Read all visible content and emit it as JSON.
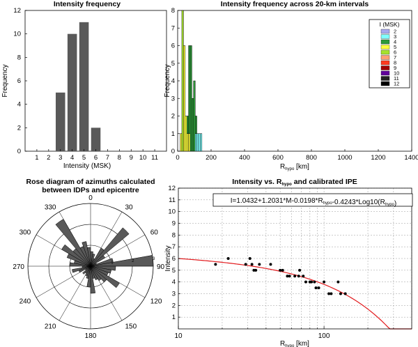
{
  "chart_data": [
    {
      "id": "hist",
      "type": "bar",
      "title": "Intensity frequency",
      "xlabel": "Intensity (MSK)",
      "ylabel": "Frequency",
      "categories": [
        "1",
        "2",
        "3",
        "4",
        "5",
        "6",
        "7",
        "8",
        "9",
        "10",
        "11"
      ],
      "values": [
        0,
        0,
        5,
        10,
        11,
        2,
        0,
        0,
        0,
        0,
        0
      ],
      "xlim": [
        0,
        12
      ],
      "ylim": [
        0,
        12
      ],
      "yticks": [
        0,
        2,
        4,
        6,
        8,
        10,
        12
      ],
      "bar_color": "#595959"
    },
    {
      "id": "stacked",
      "type": "bar",
      "title": "Intensity frequency across 20-km intervals",
      "xlabel": "R",
      "xlabel_sub": "hypo",
      "xlabel_unit": " [km]",
      "ylabel": "Frequency",
      "xlim": [
        0,
        1400
      ],
      "ylim": [
        0,
        8
      ],
      "xticks": [
        0,
        200,
        400,
        600,
        800,
        1000,
        1200,
        1400
      ],
      "yticks": [
        0,
        1,
        2,
        3,
        4,
        5,
        6,
        7,
        8
      ],
      "bin_width": 10,
      "legend_title": "I (MSK)",
      "legend": [
        {
          "label": "2",
          "color": "#a9a9ee"
        },
        {
          "label": "3",
          "color": "#7fffff"
        },
        {
          "label": "4",
          "color": "#2e9a3a"
        },
        {
          "label": "5",
          "color": "#ffff3c"
        },
        {
          "label": "6",
          "color": "#a6e22d"
        },
        {
          "label": "7",
          "color": "#ff9f74"
        },
        {
          "label": "8",
          "color": "#ff3b1f"
        },
        {
          "label": "9",
          "color": "#a10000"
        },
        {
          "label": "10",
          "color": "#60009a"
        },
        {
          "label": "11",
          "color": "#222222"
        },
        {
          "label": "12",
          "color": "#000000"
        }
      ],
      "bins": [
        {
          "x": 20,
          "stack": [
            {
              "i": "5",
              "v": 1
            }
          ]
        },
        {
          "x": 30,
          "stack": [
            {
              "i": "6",
              "v": 8
            }
          ]
        },
        {
          "x": 40,
          "stack": [
            {
              "i": "5",
              "v": 6
            }
          ]
        },
        {
          "x": 50,
          "stack": [
            {
              "i": "5",
              "v": 2
            }
          ]
        },
        {
          "x": 60,
          "stack": [
            {
              "i": "5",
              "v": 1
            },
            {
              "i": "4",
              "v": 1
            }
          ]
        },
        {
          "x": 70,
          "stack": [
            {
              "i": "5",
              "v": 1
            },
            {
              "i": "4",
              "v": 5
            }
          ]
        },
        {
          "x": 80,
          "stack": [
            {
              "i": "4",
              "v": 6
            }
          ]
        },
        {
          "x": 90,
          "stack": [
            {
              "i": "4",
              "v": 3
            }
          ]
        },
        {
          "x": 100,
          "stack": [
            {
              "i": "4",
              "v": 4
            }
          ]
        },
        {
          "x": 110,
          "stack": [
            {
              "i": "3",
              "v": 1
            },
            {
              "i": "4",
              "v": 1
            }
          ]
        },
        {
          "x": 120,
          "stack": [
            {
              "i": "3",
              "v": 1
            }
          ]
        },
        {
          "x": 130,
          "stack": [
            {
              "i": "3",
              "v": 1
            }
          ]
        },
        {
          "x": 140,
          "stack": [
            {
              "i": "3",
              "v": 1
            }
          ]
        }
      ]
    },
    {
      "id": "rose",
      "type": "rose",
      "title_line1": "Rose diagram of azimuths calculated",
      "title_line2": "between  IDPs and epicentre",
      "angle_labels": [
        "0",
        "30",
        "60",
        "90",
        "120",
        "150",
        "180",
        "210",
        "240",
        "270",
        "300",
        "330"
      ],
      "radial_labels": [
        "1",
        "2",
        "3"
      ],
      "rmax": 3,
      "sector_width_deg": 10,
      "sectors": [
        {
          "az": 5,
          "r": 0.7
        },
        {
          "az": 15,
          "r": 0.6
        },
        {
          "az": 25,
          "r": 0.4
        },
        {
          "az": 35,
          "r": 1.0
        },
        {
          "az": 45,
          "r": 2.4
        },
        {
          "az": 55,
          "r": 0.8
        },
        {
          "az": 65,
          "r": 0.3
        },
        {
          "az": 75,
          "r": 1.1
        },
        {
          "az": 85,
          "r": 3.0
        },
        {
          "az": 95,
          "r": 1.2
        },
        {
          "az": 105,
          "r": 1.0
        },
        {
          "az": 115,
          "r": 0.9
        },
        {
          "az": 125,
          "r": 1.6
        },
        {
          "az": 135,
          "r": 1.0
        },
        {
          "az": 145,
          "r": 0.8
        },
        {
          "az": 155,
          "r": 0.7
        },
        {
          "az": 165,
          "r": 0.6
        },
        {
          "az": 175,
          "r": 1.3
        },
        {
          "az": 185,
          "r": 1.0
        },
        {
          "az": 195,
          "r": 0.6
        },
        {
          "az": 205,
          "r": 0.5
        },
        {
          "az": 215,
          "r": 0.4
        },
        {
          "az": 225,
          "r": 0.5
        },
        {
          "az": 235,
          "r": 0.3
        },
        {
          "az": 245,
          "r": 0.6
        },
        {
          "az": 255,
          "r": 0.9
        },
        {
          "az": 265,
          "r": 0.4
        },
        {
          "az": 275,
          "r": 1.0
        },
        {
          "az": 285,
          "r": 0.8
        },
        {
          "az": 295,
          "r": 1.2
        },
        {
          "az": 305,
          "r": 1.6
        },
        {
          "az": 315,
          "r": 1.1
        },
        {
          "az": 325,
          "r": 2.6
        },
        {
          "az": 335,
          "r": 1.0
        },
        {
          "az": 345,
          "r": 1.2
        },
        {
          "az": 355,
          "r": 0.9
        }
      ],
      "fill_color": "#595959"
    },
    {
      "id": "ipe",
      "type": "scatter",
      "title_pre": "Intensity vs. R",
      "title_sub": "hypo",
      "title_post": " and calibrated IPE",
      "xlabel": "R",
      "xlabel_sub": "hypo",
      "xlabel_unit": " [km]",
      "ylabel": "Intensity",
      "x_scale": "log",
      "xlim": [
        10,
        400
      ],
      "ylim": [
        0,
        12
      ],
      "xtick_labels": [
        "10",
        "100"
      ],
      "yticks": [
        1,
        2,
        3,
        4,
        5,
        6,
        7,
        8,
        9,
        10,
        11,
        12
      ],
      "grid": true,
      "equation_parts": [
        {
          "t": "I=1.0432+1.2031*M-0.0198*R",
          "sub": false
        },
        {
          "t": "hypo",
          "sub": true
        },
        {
          "t": "-0.4243*Log10(R",
          "sub": false
        },
        {
          "t": "hypo",
          "sub": true
        },
        {
          "t": ")",
          "sub": false
        }
      ],
      "points": [
        [
          18,
          5.5
        ],
        [
          22,
          6
        ],
        [
          29,
          5.5
        ],
        [
          31,
          6
        ],
        [
          32,
          5.5
        ],
        [
          33,
          5
        ],
        [
          34,
          5
        ],
        [
          36,
          5.5
        ],
        [
          43,
          5.5
        ],
        [
          50,
          5
        ],
        [
          52,
          5
        ],
        [
          56,
          4.5
        ],
        [
          58,
          4.5
        ],
        [
          63,
          4.5
        ],
        [
          67,
          4.5
        ],
        [
          68,
          5
        ],
        [
          72,
          4.5
        ],
        [
          75,
          4
        ],
        [
          80,
          4
        ],
        [
          82,
          4
        ],
        [
          86,
          4
        ],
        [
          88,
          3.5
        ],
        [
          92,
          3.5
        ],
        [
          100,
          4
        ],
        [
          108,
          3
        ],
        [
          112,
          3
        ],
        [
          125,
          4
        ],
        [
          130,
          3
        ],
        [
          140,
          3
        ]
      ],
      "curve_color": "#e2191c",
      "point_color": "#000000"
    }
  ]
}
